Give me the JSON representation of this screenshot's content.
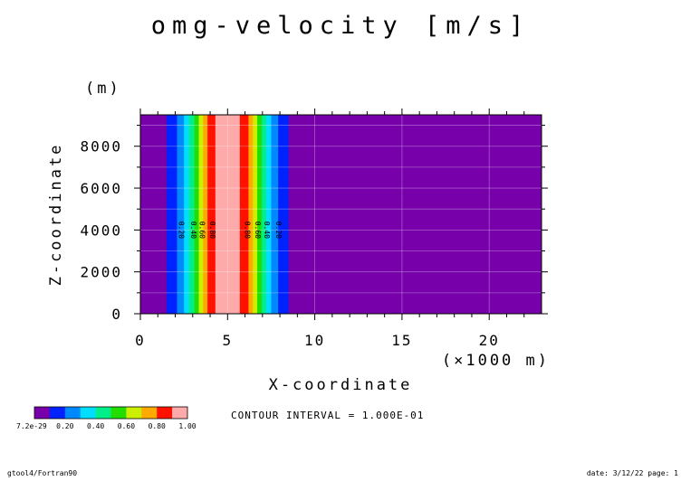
{
  "chart_data": {
    "type": "heatmap",
    "title": "omg-velocity [m/s]",
    "xlabel": "X-coordinate",
    "x_unit": "(×1000 m)",
    "ylabel": "Z-coordinate",
    "y_unit": "(m)",
    "xlim": [
      0,
      23
    ],
    "ylim": [
      0,
      9500
    ],
    "x_ticks": [
      0,
      5,
      10,
      15,
      20
    ],
    "y_ticks": [
      0,
      2000,
      4000,
      6000,
      8000
    ],
    "grid": true,
    "bands": [
      {
        "x0": 0.0,
        "x1": 1.5,
        "level": 0
      },
      {
        "x0": 1.5,
        "x1": 2.1,
        "level": 1
      },
      {
        "x0": 2.1,
        "x1": 2.5,
        "level": 2
      },
      {
        "x0": 2.5,
        "x1": 2.8,
        "level": 3
      },
      {
        "x0": 2.8,
        "x1": 3.1,
        "level": 4
      },
      {
        "x0": 3.1,
        "x1": 3.35,
        "level": 5
      },
      {
        "x0": 3.35,
        "x1": 3.6,
        "level": 6
      },
      {
        "x0": 3.6,
        "x1": 3.85,
        "level": 7
      },
      {
        "x0": 3.85,
        "x1": 4.3,
        "level": 8
      },
      {
        "x0": 4.3,
        "x1": 5.7,
        "level": 9
      },
      {
        "x0": 5.7,
        "x1": 6.2,
        "level": 8
      },
      {
        "x0": 6.2,
        "x1": 6.45,
        "level": 7
      },
      {
        "x0": 6.45,
        "x1": 6.7,
        "level": 6
      },
      {
        "x0": 6.7,
        "x1": 6.95,
        "level": 5
      },
      {
        "x0": 6.95,
        "x1": 7.2,
        "level": 4
      },
      {
        "x0": 7.2,
        "x1": 7.5,
        "level": 3
      },
      {
        "x0": 7.5,
        "x1": 7.9,
        "level": 2
      },
      {
        "x0": 7.9,
        "x1": 8.5,
        "level": 1
      },
      {
        "x0": 8.5,
        "x1": 23.0,
        "level": 0
      }
    ],
    "contour_labels": [
      {
        "x": 2.2,
        "text": "0.20"
      },
      {
        "x": 2.9,
        "text": "0.40"
      },
      {
        "x": 3.4,
        "text": "0.60"
      },
      {
        "x": 4.0,
        "text": "0.80"
      },
      {
        "x": 6.0,
        "text": "0.80"
      },
      {
        "x": 6.6,
        "text": "0.60"
      },
      {
        "x": 7.1,
        "text": "0.40"
      },
      {
        "x": 7.8,
        "text": "0.20"
      }
    ],
    "contour_label_y": 4000,
    "colorbar": {
      "colors": [
        "#7700aa",
        "#0022ff",
        "#0088ff",
        "#00ddff",
        "#00ee88",
        "#22dd00",
        "#ccee00",
        "#ffaa00",
        "#ff1100",
        "#ffaaaa"
      ],
      "tick_labels": [
        "7.2e-29",
        "0.20",
        "0.40",
        "0.60",
        "0.80",
        "1.00"
      ]
    },
    "contour_interval_text": "CONTOUR INTERVAL = 1.000E-01"
  },
  "footer": {
    "left": "gtool4/Fortran90",
    "right": "date: 3/12/22 page: 1"
  }
}
